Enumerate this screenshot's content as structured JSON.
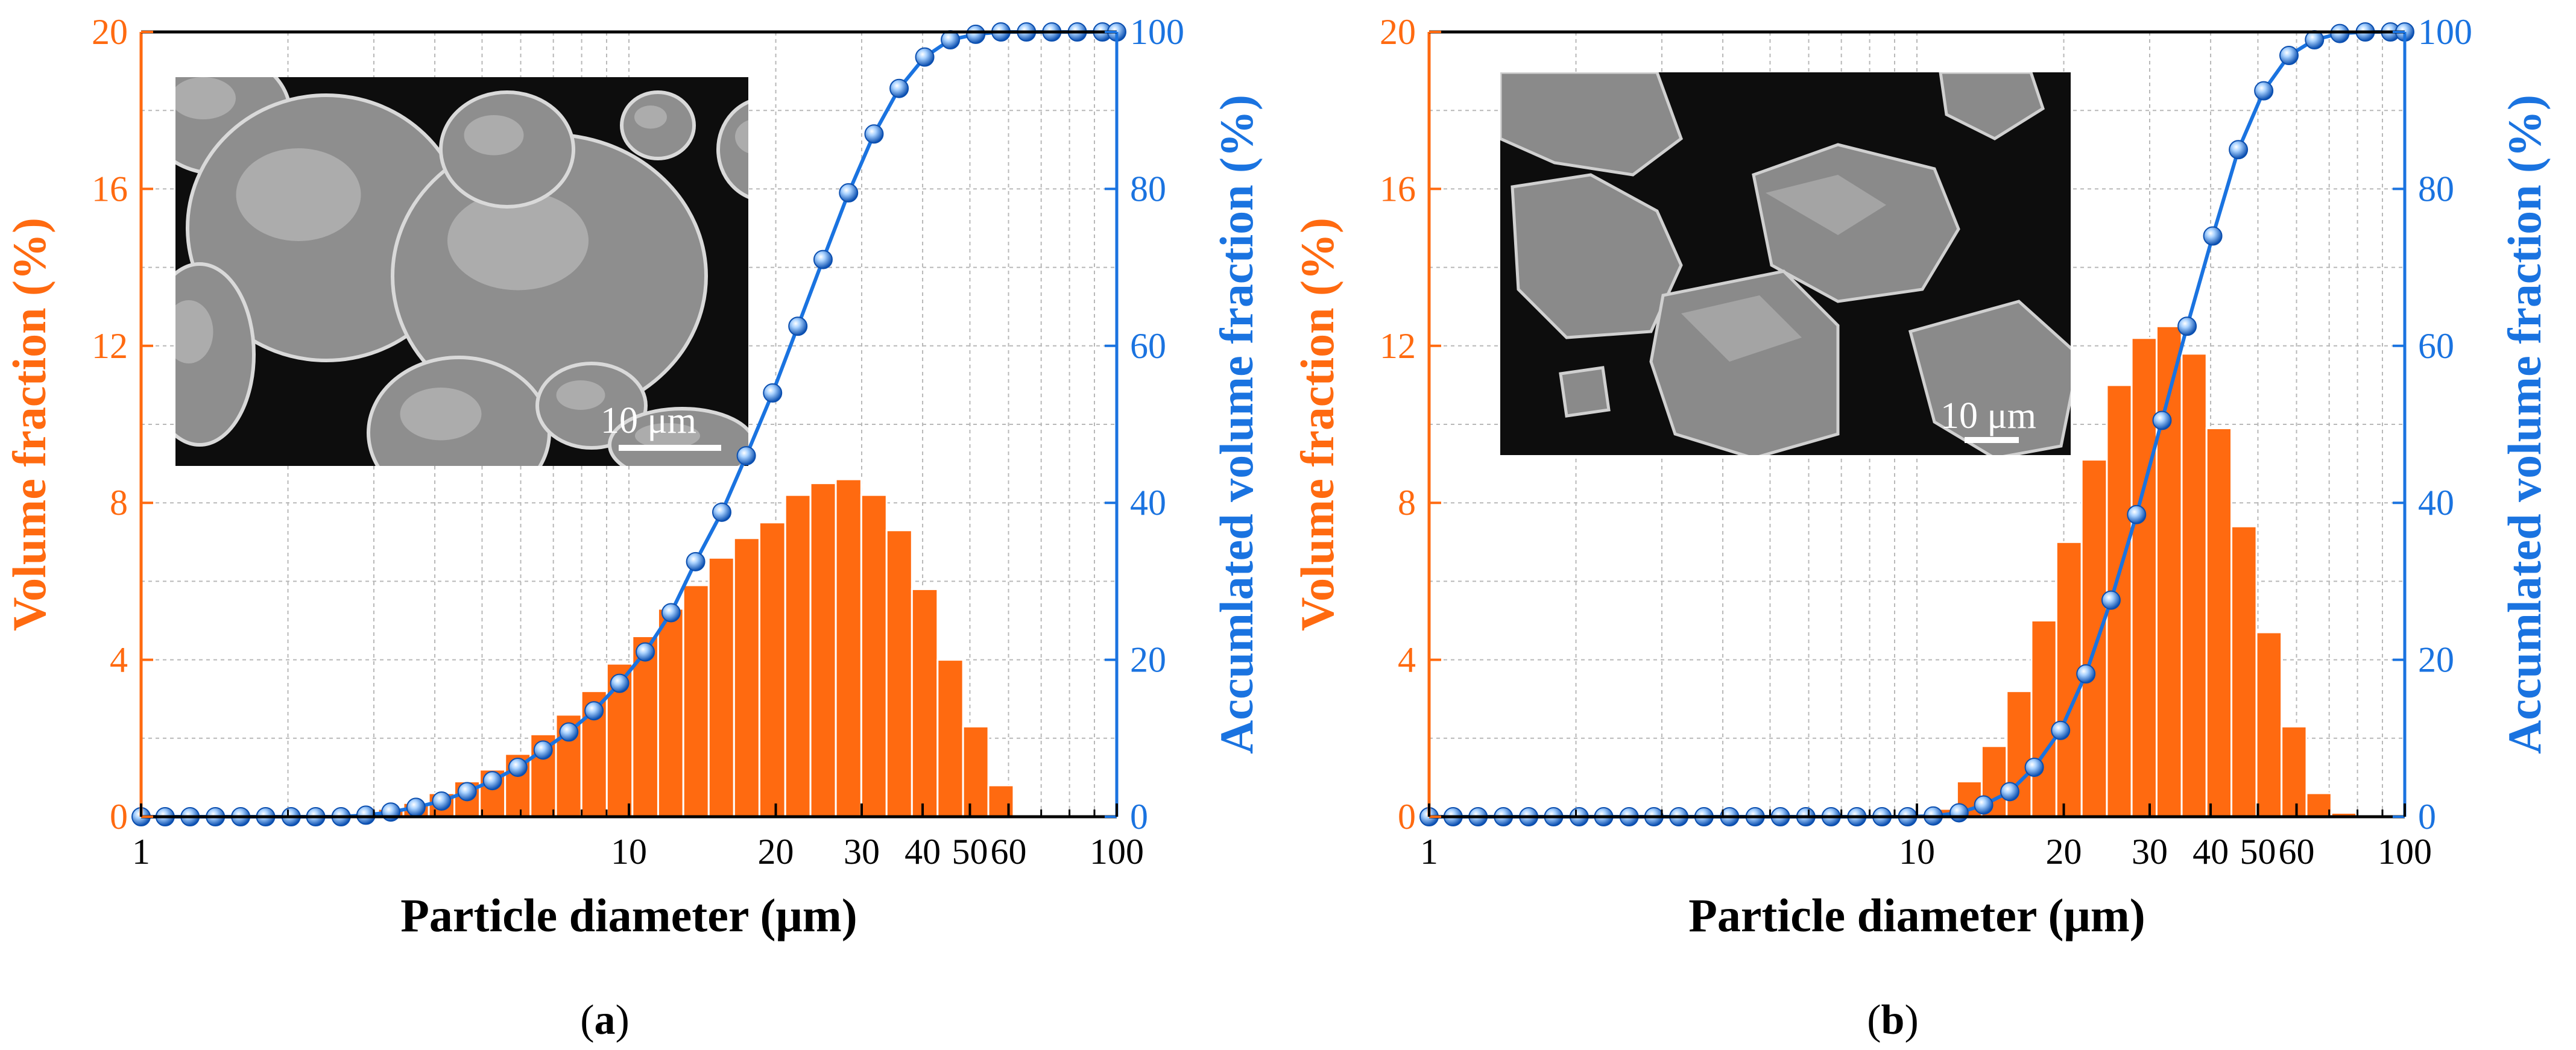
{
  "colors": {
    "bar": "#ff6a10",
    "bar_stroke": "#ffffff",
    "line": "#1a73e0",
    "marker_light": "#a9d2ff",
    "marker_dark": "#0b4fb0",
    "left_axis": "#ff6a10",
    "right_axis": "#1a73e0",
    "grid": "#b8b8b8",
    "sem_bg": "#0d0d0d"
  },
  "chart_data": [
    {
      "panel_label": "a",
      "type": "bar+line",
      "xlabel": "Particle diameter (μm)",
      "ylabel_left": "Volume fraction (%)",
      "ylabel_right": "Accumlated volume fraction (%)",
      "x_scale": "log",
      "xlim": [
        1,
        100
      ],
      "ylim_left": [
        0,
        20
      ],
      "ylim_right": [
        0,
        100
      ],
      "x_ticks": [
        1,
        10,
        20,
        30,
        40,
        50,
        60,
        100
      ],
      "x_tick_labels": [
        "1",
        "10",
        "20",
        "30",
        "40",
        "50",
        "60",
        "100"
      ],
      "y_left_ticks": [
        0,
        4,
        8,
        12,
        16,
        20
      ],
      "y_left_tick_labels": [
        "0",
        "4",
        "8",
        "12",
        "16",
        "20"
      ],
      "y_right_ticks": [
        0,
        20,
        40,
        60,
        80,
        100
      ],
      "y_right_tick_labels": [
        "0",
        "20",
        "40",
        "60",
        "80",
        "100"
      ],
      "inset": {
        "description": "SEM micrograph of spherical particles",
        "scale_bar_label": "10 μm",
        "style": "spherical"
      },
      "bars": {
        "x": [
          3.25,
          3.66,
          4.13,
          4.66,
          5.25,
          5.92,
          6.67,
          7.53,
          8.48,
          9.57,
          10.8,
          12.2,
          13.7,
          15.5,
          17.4,
          19.7,
          22.2,
          25.0,
          28.2,
          31.8,
          35.8,
          40.4,
          45.6,
          51.4,
          57.9
        ],
        "values": [
          0.2,
          0.35,
          0.6,
          0.9,
          1.2,
          1.6,
          2.1,
          2.6,
          3.2,
          3.9,
          4.6,
          5.3,
          5.9,
          6.6,
          7.1,
          7.5,
          8.2,
          8.5,
          8.6,
          8.2,
          7.3,
          5.8,
          4.0,
          2.3,
          0.8
        ]
      },
      "cumulative": {
        "x": [
          1.0,
          1.12,
          1.26,
          1.42,
          1.6,
          1.8,
          2.03,
          2.28,
          2.57,
          2.89,
          3.25,
          3.66,
          4.13,
          4.66,
          5.25,
          5.92,
          6.67,
          7.53,
          8.48,
          9.57,
          10.8,
          12.2,
          13.7,
          15.5,
          17.4,
          19.7,
          22.2,
          25.0,
          28.2,
          31.8,
          35.8,
          40.4,
          45.6,
          51.4,
          57.9,
          65.3,
          73.6,
          83.0,
          93.5,
          100.0
        ],
        "values": [
          0,
          0,
          0,
          0,
          0,
          0,
          0,
          0,
          0,
          0.2,
          0.6,
          1.2,
          2.0,
          3.2,
          4.6,
          6.3,
          8.5,
          10.8,
          13.5,
          17.0,
          21.0,
          26.0,
          32.5,
          38.8,
          46.0,
          54.0,
          62.5,
          71.0,
          79.5,
          87.0,
          92.8,
          96.8,
          99.0,
          99.7,
          100,
          100,
          100,
          100,
          100,
          100
        ]
      }
    },
    {
      "panel_label": "b",
      "type": "bar+line",
      "xlabel": "Particle diameter (μm)",
      "ylabel_left": "Volume fraction (%)",
      "ylabel_right": "Accumlated volume fraction (%)",
      "x_scale": "log",
      "xlim": [
        1,
        100
      ],
      "ylim_left": [
        0,
        20
      ],
      "ylim_right": [
        0,
        100
      ],
      "x_ticks": [
        1,
        10,
        20,
        30,
        40,
        50,
        60,
        100
      ],
      "x_tick_labels": [
        "1",
        "10",
        "20",
        "30",
        "40",
        "50",
        "60",
        "100"
      ],
      "y_left_ticks": [
        0,
        4,
        8,
        12,
        16,
        20
      ],
      "y_left_tick_labels": [
        "0",
        "4",
        "8",
        "12",
        "16",
        "20"
      ],
      "y_right_ticks": [
        0,
        20,
        40,
        60,
        80,
        100
      ],
      "y_right_tick_labels": [
        "0",
        "20",
        "40",
        "60",
        "80",
        "100"
      ],
      "inset": {
        "description": "SEM micrograph of irregular particles",
        "scale_bar_label": "10 μm",
        "style": "irregular"
      },
      "bars": {
        "x": [
          11.4,
          12.8,
          14.4,
          16.2,
          18.2,
          20.5,
          23.1,
          26.0,
          29.2,
          32.9,
          37.0,
          41.6,
          46.8,
          52.7,
          59.3,
          66.7,
          75.0,
          84.4,
          95.0
        ],
        "values": [
          0.2,
          0.9,
          1.8,
          3.2,
          5.0,
          7.0,
          9.1,
          11.0,
          12.2,
          12.5,
          11.8,
          9.9,
          7.4,
          4.7,
          2.3,
          0.6,
          0.1,
          0.0,
          0.0
        ]
      },
      "cumulative": {
        "x": [
          1.0,
          1.12,
          1.26,
          1.42,
          1.6,
          1.8,
          2.03,
          2.28,
          2.57,
          2.89,
          3.25,
          3.66,
          4.13,
          4.66,
          5.25,
          5.92,
          6.67,
          7.53,
          8.48,
          9.57,
          10.8,
          12.2,
          13.7,
          15.5,
          17.4,
          19.7,
          22.2,
          25.0,
          28.2,
          31.8,
          35.8,
          40.4,
          45.6,
          51.4,
          57.9,
          65.3,
          73.6,
          83.0,
          93.5,
          100.0
        ],
        "values": [
          0,
          0,
          0,
          0,
          0,
          0,
          0,
          0,
          0,
          0,
          0,
          0,
          0,
          0,
          0,
          0,
          0,
          0,
          0,
          0,
          0.1,
          0.5,
          1.5,
          3.2,
          6.3,
          11.0,
          18.2,
          27.6,
          38.5,
          50.5,
          62.5,
          74.0,
          85.0,
          92.5,
          97.0,
          99.0,
          99.8,
          100,
          100,
          100
        ]
      }
    }
  ]
}
